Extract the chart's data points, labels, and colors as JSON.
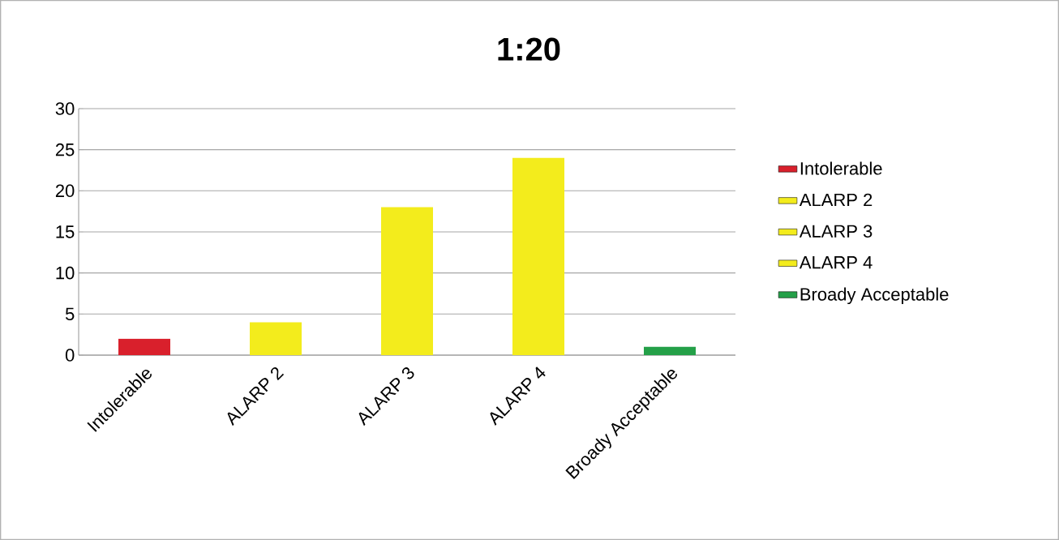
{
  "chart_data": {
    "type": "bar",
    "title": "1:20",
    "categories": [
      "Intolerable",
      "ALARP 2",
      "ALARP 3",
      "ALARP 4",
      "Broady Acceptable"
    ],
    "series": [
      {
        "name": "Intolerable",
        "color": "#d9202c",
        "values": [
          2,
          null,
          null,
          null,
          null
        ]
      },
      {
        "name": "ALARP 2",
        "color": "#f3ec1c",
        "values": [
          null,
          4,
          null,
          null,
          null
        ]
      },
      {
        "name": "ALARP 3",
        "color": "#f3ec1c",
        "values": [
          null,
          null,
          18,
          null,
          null
        ]
      },
      {
        "name": "ALARP 4",
        "color": "#f3ec1c",
        "values": [
          null,
          null,
          null,
          24,
          null
        ]
      },
      {
        "name": "Broady Acceptable",
        "color": "#24a048",
        "values": [
          null,
          null,
          null,
          null,
          1
        ]
      }
    ],
    "ylim": [
      0,
      30
    ],
    "yticks": [
      0,
      5,
      10,
      15,
      20,
      25,
      30
    ],
    "grid": "y",
    "legend": "right"
  }
}
